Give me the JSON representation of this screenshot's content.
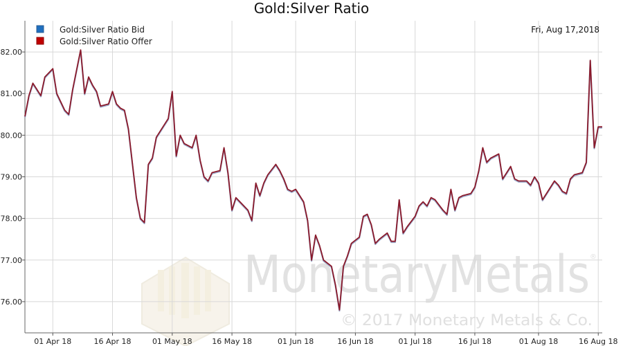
{
  "chart_data": {
    "type": "line",
    "title": "Gold:Silver Ratio",
    "date_label": "Fri, Aug 17,2018",
    "watermark": {
      "brand": "MonetaryMetals",
      "copyright": "© 2017 Monetary Metals & Co.",
      "registered": "®"
    },
    "ylim": [
      75.25,
      82.75
    ],
    "yticks": [
      "76.00",
      "77.00",
      "78.00",
      "79.00",
      "80.00",
      "81.00",
      "82.00"
    ],
    "ytick_values": [
      76,
      77,
      78,
      79,
      80,
      81,
      82
    ],
    "xlim": [
      "2018-03-25",
      "2018-08-17"
    ],
    "xticks": [
      {
        "label": "01 Apr 18",
        "date": "2018-04-01"
      },
      {
        "label": "16 Apr 18",
        "date": "2018-04-16"
      },
      {
        "label": "01 May 18",
        "date": "2018-05-01"
      },
      {
        "label": "16 May 18",
        "date": "2018-05-16"
      },
      {
        "label": "01 Jun 18",
        "date": "2018-06-01"
      },
      {
        "label": "16 Jun 18",
        "date": "2018-06-16"
      },
      {
        "label": "01 Jul 18",
        "date": "2018-07-01"
      },
      {
        "label": "16 Jul 18",
        "date": "2018-07-16"
      },
      {
        "label": "01 Aug 18",
        "date": "2018-08-01"
      },
      {
        "label": "16 Aug 18",
        "date": "2018-08-16"
      }
    ],
    "grid": true,
    "legend_position": "top-left",
    "series": [
      {
        "name": "Gold:Silver Ratio Bid",
        "color": "#1f6fbf"
      },
      {
        "name": "Gold:Silver Ratio Offer",
        "color": "#c00000"
      }
    ],
    "x": [
      "2018-03-25",
      "2018-03-26",
      "2018-03-27",
      "2018-03-28",
      "2018-03-29",
      "2018-03-30",
      "2018-04-01",
      "2018-04-02",
      "2018-04-03",
      "2018-04-04",
      "2018-04-05",
      "2018-04-06",
      "2018-04-08",
      "2018-04-09",
      "2018-04-10",
      "2018-04-11",
      "2018-04-12",
      "2018-04-13",
      "2018-04-15",
      "2018-04-16",
      "2018-04-17",
      "2018-04-18",
      "2018-04-19",
      "2018-04-20",
      "2018-04-22",
      "2018-04-23",
      "2018-04-24",
      "2018-04-25",
      "2018-04-26",
      "2018-04-27",
      "2018-04-29",
      "2018-04-30",
      "2018-05-01",
      "2018-05-02",
      "2018-05-03",
      "2018-05-04",
      "2018-05-06",
      "2018-05-07",
      "2018-05-08",
      "2018-05-09",
      "2018-05-10",
      "2018-05-11",
      "2018-05-13",
      "2018-05-14",
      "2018-05-15",
      "2018-05-16",
      "2018-05-17",
      "2018-05-18",
      "2018-05-20",
      "2018-05-21",
      "2018-05-22",
      "2018-05-23",
      "2018-05-24",
      "2018-05-25",
      "2018-05-27",
      "2018-05-28",
      "2018-05-29",
      "2018-05-30",
      "2018-05-31",
      "2018-06-01",
      "2018-06-03",
      "2018-06-04",
      "2018-06-05",
      "2018-06-06",
      "2018-06-07",
      "2018-06-08",
      "2018-06-10",
      "2018-06-11",
      "2018-06-12",
      "2018-06-13",
      "2018-06-14",
      "2018-06-15",
      "2018-06-17",
      "2018-06-18",
      "2018-06-19",
      "2018-06-20",
      "2018-06-21",
      "2018-06-22",
      "2018-06-24",
      "2018-06-25",
      "2018-06-26",
      "2018-06-27",
      "2018-06-28",
      "2018-06-29",
      "2018-07-01",
      "2018-07-02",
      "2018-07-03",
      "2018-07-04",
      "2018-07-05",
      "2018-07-06",
      "2018-07-08",
      "2018-07-09",
      "2018-07-10",
      "2018-07-11",
      "2018-07-12",
      "2018-07-13",
      "2018-07-15",
      "2018-07-16",
      "2018-07-17",
      "2018-07-18",
      "2018-07-19",
      "2018-07-20",
      "2018-07-22",
      "2018-07-23",
      "2018-07-24",
      "2018-07-25",
      "2018-07-26",
      "2018-07-27",
      "2018-07-29",
      "2018-07-30",
      "2018-07-31",
      "2018-08-01",
      "2018-08-02",
      "2018-08-03",
      "2018-08-05",
      "2018-08-06",
      "2018-08-07",
      "2018-08-08",
      "2018-08-09",
      "2018-08-10",
      "2018-08-12",
      "2018-08-13",
      "2018-08-14",
      "2018-08-15",
      "2018-08-16",
      "2018-08-17"
    ],
    "values": [
      80.45,
      80.95,
      81.25,
      81.1,
      80.95,
      81.4,
      81.6,
      81.0,
      80.8,
      80.6,
      80.5,
      81.1,
      82.05,
      81.0,
      81.4,
      81.2,
      81.05,
      80.7,
      80.75,
      81.05,
      80.75,
      80.65,
      80.6,
      80.15,
      78.5,
      78.0,
      77.9,
      79.3,
      79.45,
      79.95,
      80.25,
      80.4,
      81.05,
      79.5,
      80.0,
      79.8,
      79.7,
      80.0,
      79.4,
      79.0,
      78.9,
      79.1,
      79.15,
      79.7,
      79.1,
      78.2,
      78.5,
      78.4,
      78.2,
      77.95,
      78.85,
      78.55,
      78.85,
      79.05,
      79.3,
      79.15,
      78.95,
      78.7,
      78.65,
      78.7,
      78.4,
      77.95,
      77.0,
      77.6,
      77.35,
      77.0,
      76.85,
      76.4,
      75.8,
      76.85,
      77.1,
      77.4,
      77.55,
      78.05,
      78.1,
      77.85,
      77.4,
      77.5,
      77.65,
      77.45,
      77.45,
      78.45,
      77.65,
      77.8,
      78.05,
      78.3,
      78.4,
      78.3,
      78.5,
      78.45,
      78.2,
      78.1,
      78.7,
      78.2,
      78.5,
      78.55,
      78.6,
      78.75,
      79.15,
      79.7,
      79.35,
      79.45,
      79.55,
      78.95,
      79.1,
      79.25,
      78.95,
      78.9,
      78.9,
      78.8,
      79.0,
      78.85,
      78.45,
      78.6,
      78.9,
      78.8,
      78.65,
      78.6,
      78.95,
      79.05,
      79.1,
      79.35,
      81.8,
      79.7,
      80.2,
      80.2
    ]
  }
}
